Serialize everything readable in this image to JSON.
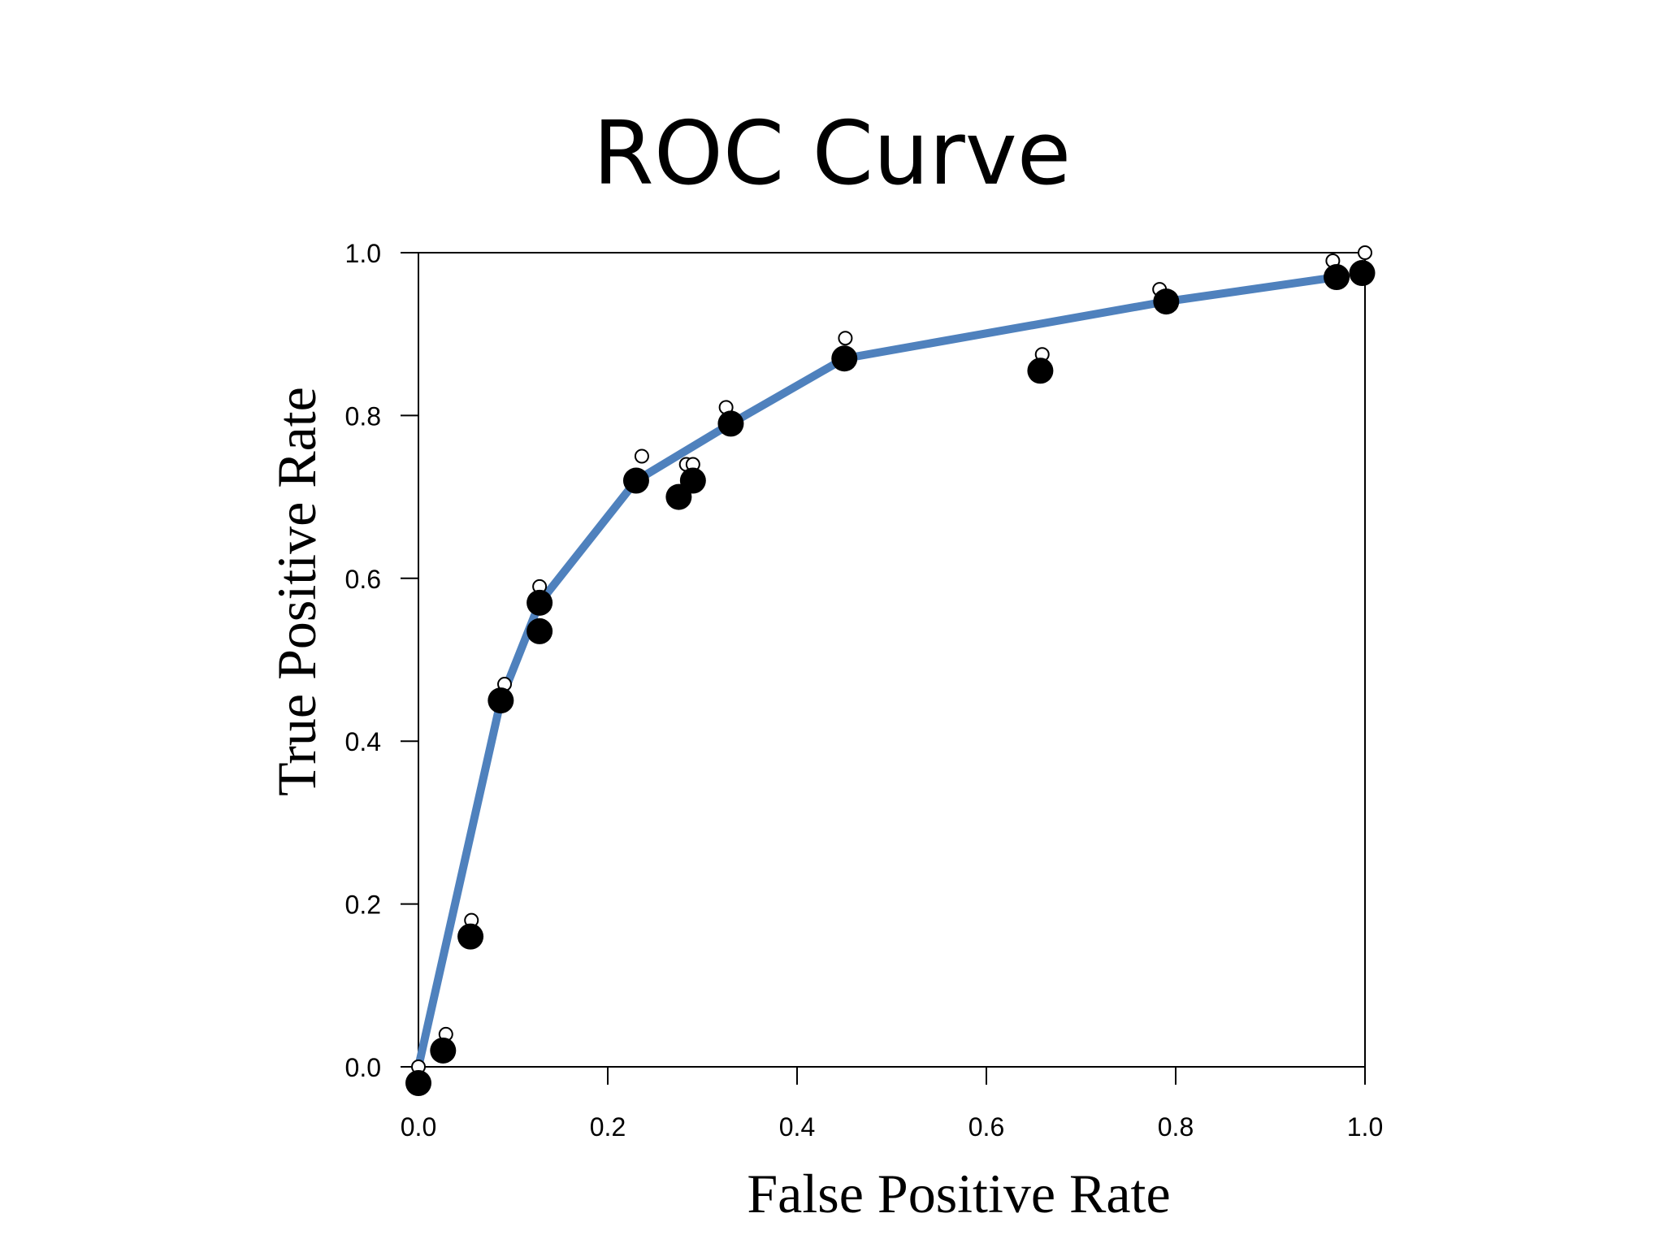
{
  "chart_data": {
    "type": "line",
    "title": "ROC Curve",
    "xlabel": "False Positive Rate",
    "ylabel": "True Positive Rate",
    "xlim": [
      0,
      1
    ],
    "ylim": [
      0,
      1
    ],
    "x_ticks": [
      "0.0",
      "0.2",
      "0.4",
      "0.6",
      "0.8",
      "1.0"
    ],
    "y_ticks": [
      "0.0",
      "0.2",
      "0.4",
      "0.6",
      "0.8",
      "1.0"
    ],
    "grid": false,
    "colors": {
      "curve": "#4f81bd",
      "filled_points": "#000000",
      "open_points": "#ffffff"
    },
    "series": [
      {
        "name": "ROC curve",
        "style": "line",
        "x": [
          0.0,
          0.087,
          0.128,
          0.23,
          0.33,
          0.45,
          0.79,
          0.97
        ],
        "y": [
          0.0,
          0.45,
          0.57,
          0.72,
          0.79,
          0.87,
          0.94,
          0.97
        ]
      },
      {
        "name": "Filled points",
        "style": "filled-marker",
        "x": [
          0.0,
          0.026,
          0.055,
          0.087,
          0.128,
          0.128,
          0.23,
          0.275,
          0.29,
          0.33,
          0.45,
          0.657,
          0.79,
          0.97,
          0.997
        ],
        "y": [
          -0.02,
          0.02,
          0.16,
          0.45,
          0.535,
          0.57,
          0.72,
          0.7,
          0.72,
          0.79,
          0.87,
          0.855,
          0.94,
          0.97,
          0.975
        ]
      },
      {
        "name": "Open points",
        "style": "open-marker",
        "x": [
          0.0,
          0.029,
          0.056,
          0.091,
          0.128,
          0.236,
          0.283,
          0.29,
          0.325,
          0.451,
          0.659,
          0.783,
          0.966,
          1.0
        ],
        "y": [
          0.0,
          0.04,
          0.18,
          0.47,
          0.59,
          0.75,
          0.74,
          0.74,
          0.81,
          0.895,
          0.875,
          0.955,
          0.99,
          1.0
        ]
      }
    ]
  }
}
